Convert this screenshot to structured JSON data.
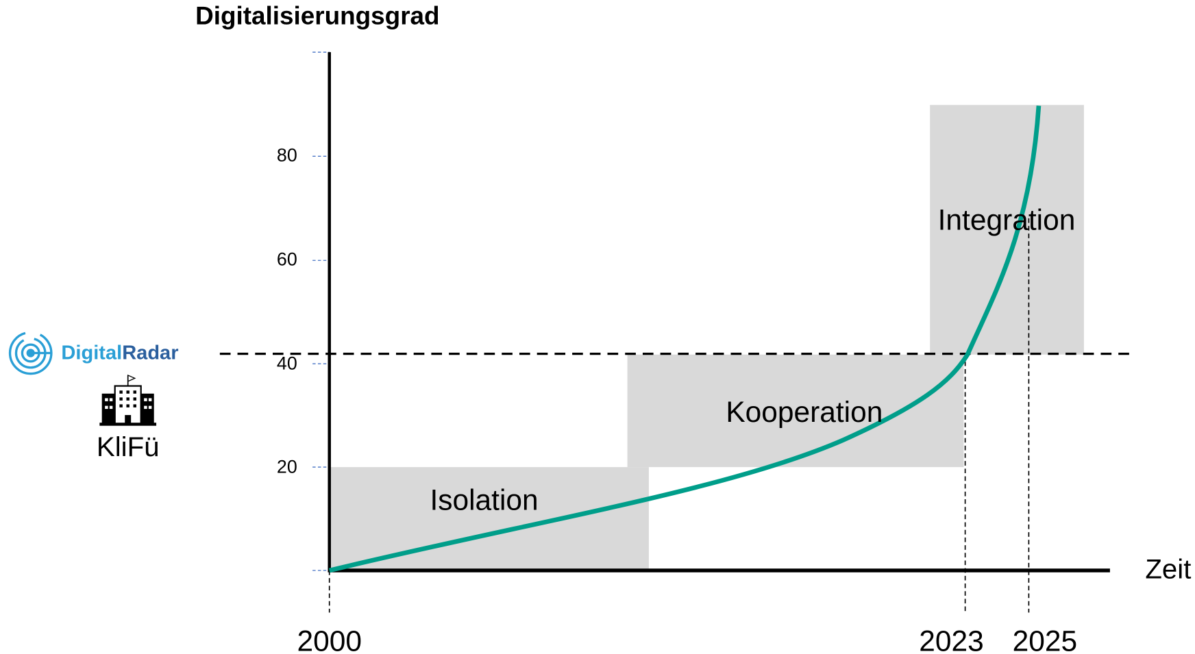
{
  "title": "Digitalisierungsgrad",
  "x_axis_label": "Zeit",
  "y_tick_labels": [
    "80",
    "60",
    "40",
    "20"
  ],
  "x_tick_labels": [
    "2000",
    "2023",
    "2025"
  ],
  "phases": [
    "Isolation",
    "Kooperation",
    "Integration"
  ],
  "logo": {
    "part1": "Digital",
    "part2": "Radar"
  },
  "marker_label": "KliFü"
}
